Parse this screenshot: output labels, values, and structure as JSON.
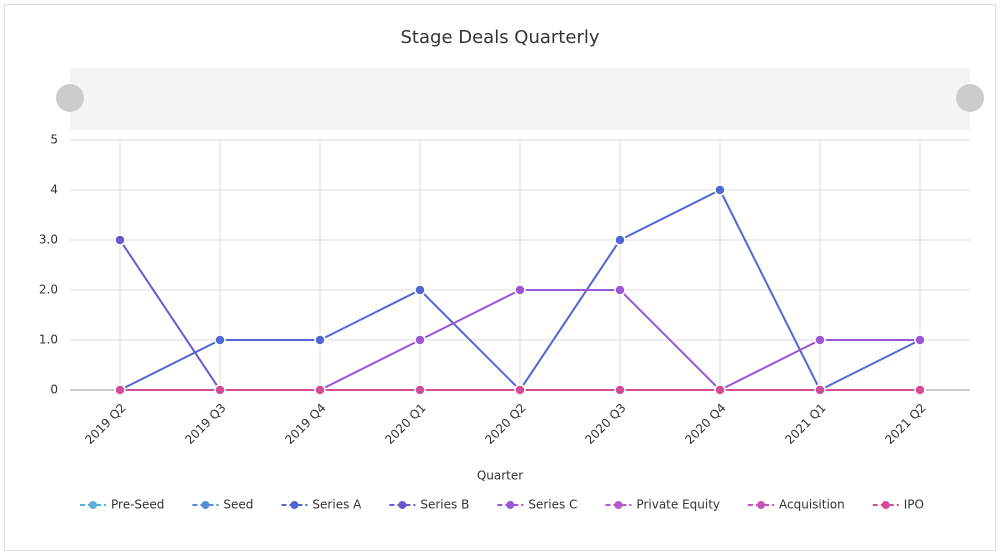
{
  "chart_data": {
    "type": "line",
    "title": "Stage Deals Quarterly",
    "x_label": "Quarter",
    "categories": [
      "2019 Q2",
      "2019 Q3",
      "2019 Q4",
      "2020 Q1",
      "2020 Q2",
      "2020 Q3",
      "2020 Q4",
      "2021 Q1",
      "2021 Q2"
    ],
    "series": [
      {
        "name": "Pre-Seed",
        "color": "#5ab0d8",
        "values": [
          0,
          0,
          0,
          0,
          0,
          0,
          0,
          0,
          0
        ]
      },
      {
        "name": "Seed",
        "color": "#5a8ad6",
        "values": [
          0,
          0,
          0,
          0,
          0,
          0,
          0,
          0,
          0
        ]
      },
      {
        "name": "Series A",
        "color": "#5068d4",
        "values": [
          0,
          1,
          1,
          2,
          0,
          3,
          4,
          0,
          1
        ]
      },
      {
        "name": "Series B",
        "color": "#6a58cc",
        "values": [
          3,
          0,
          0,
          0,
          0,
          0,
          0,
          0,
          0
        ]
      },
      {
        "name": "Series C",
        "color": "#9a56d4",
        "values": [
          0,
          0,
          0,
          1,
          2,
          2,
          0,
          1,
          1
        ]
      },
      {
        "name": "Private Equity",
        "color": "#b854cc",
        "values": [
          0,
          0,
          0,
          0,
          0,
          0,
          0,
          0,
          0
        ]
      },
      {
        "name": "Acquisition",
        "color": "#c852b8",
        "values": [
          0,
          0,
          0,
          0,
          0,
          0,
          0,
          0,
          0
        ]
      },
      {
        "name": "IPO",
        "color": "#d44c98",
        "values": [
          0,
          0,
          0,
          0,
          0,
          0,
          0,
          0,
          0
        ]
      }
    ],
    "ylim": [
      0,
      5
    ],
    "yticks": [
      0,
      {
        "value": 1,
        "label": "1.0"
      },
      {
        "value": 2,
        "label": "2.0"
      },
      {
        "value": 3,
        "label": "3.0"
      },
      4,
      5
    ],
    "grid": true,
    "legend": "bottom"
  }
}
